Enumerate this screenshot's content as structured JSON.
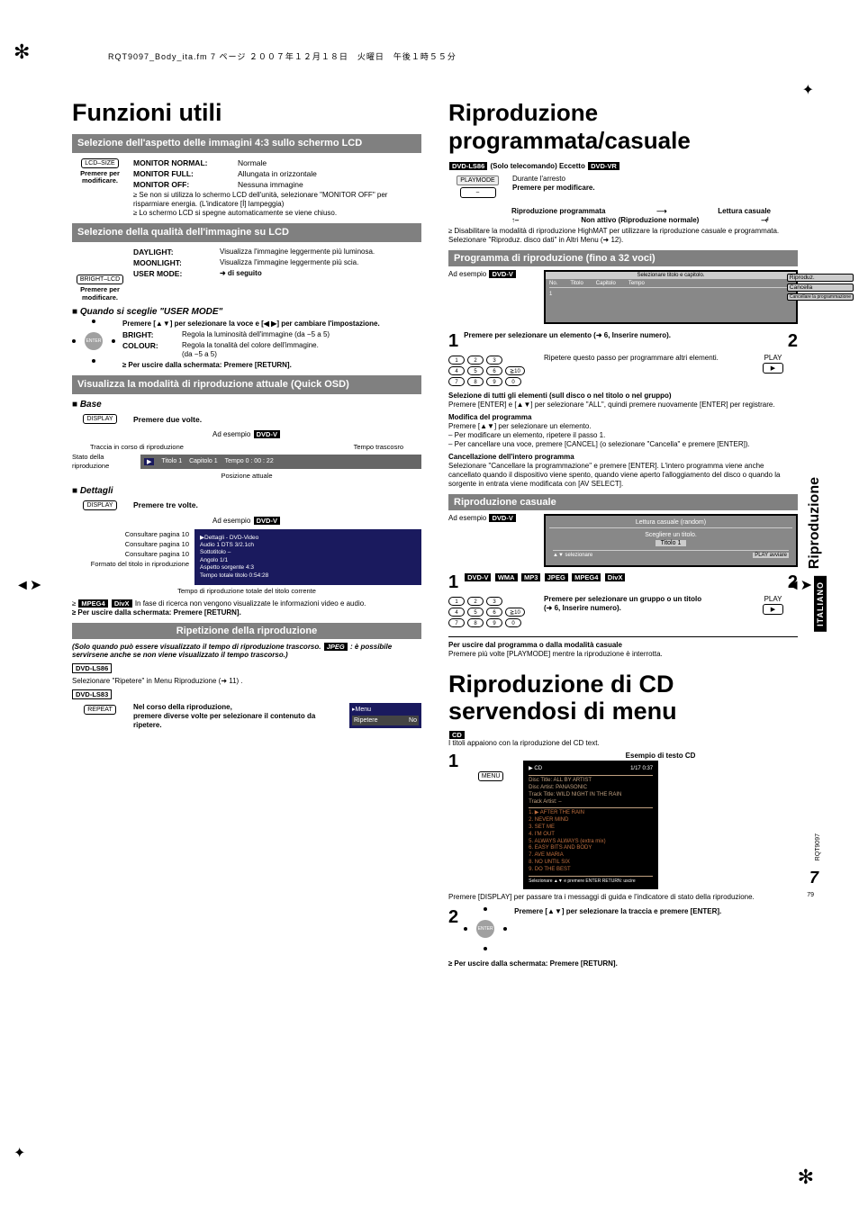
{
  "header_line": "RQT9097_Body_ita.fm  7 ページ  ２００７年１２月１８日　火曜日　午後１時５５分",
  "left": {
    "headline": "Funzioni utili",
    "bar1": "Selezione dell'aspetto delle immagini 4:3 sullo schermo LCD",
    "btn_lcdsize": "LCD–SIZE",
    "press_mod": "Premere per modificare.",
    "monitor_normal_l": "MONITOR NORMAL:",
    "monitor_normal_v": "Normale",
    "monitor_full_l": "MONITOR FULL:",
    "monitor_full_v": "Allungata in orizzontale",
    "monitor_off_l": "MONITOR OFF:",
    "monitor_off_v": "Nessuna immagine",
    "monitor_b1": "Se non si utilizza lo schermo LCD dell'unità, selezionare \"MONITOR OFF\" per risparmiare energia. (L'indicatore [Í] lampeggia)",
    "monitor_b2": "Lo schermo LCD si spegne automaticamente se viene chiuso.",
    "bar2": "Selezione della qualità dell'immagine su LCD",
    "btn_bright": "BRIGHT–LCD",
    "daylight_l": "DAYLIGHT:",
    "daylight_v": "Visualizza l'immagine leggermente più luminosa.",
    "moonlight_l": "MOONLIGHT:",
    "moonlight_v": "Visualizza l'immagine leggermente più scia.",
    "usermode_l": "USER MODE:",
    "usermode_v": "➜ di seguito",
    "user_title": "Quando si sceglie \"USER MODE\"",
    "user_instr": "Premere [▲▼] per selezionare la voce e [◀ ▶] per cambiare l'impostazione.",
    "bright_l": "BRIGHT:",
    "bright_v": "Regola la luminosità dell'immagine (da −5 a 5)",
    "colour_l": "COLOUR:",
    "colour_v": "Regola la tonalità del colore dell'immagine.\n(da −5 a 5)",
    "exit_return": "Per uscire dalla schermata: Premere [RETURN].",
    "bar3": "Visualizza la modalità di riproduzione attuale (Quick OSD)",
    "base_t": "Base",
    "btn_display": "DISPLAY",
    "press_twice": "Premere due volte.",
    "ex_label": "Ad esempio",
    "traccia": "Traccia in corso di riproduzione",
    "tempo_tras": "Tempo trascosro",
    "stato": "Stato della riproduzione",
    "osd_titolo": "Titolo 1",
    "osd_capitolo": "Capitolo 1",
    "osd_tempo": "Tempo 0 : 00 : 22",
    "pos_att": "Posizione attuale",
    "dettagli_t": "Dettagli",
    "press_three": "Premere tre volte.",
    "consult_10a": "Consultare pagina 10",
    "consult_10b": "Consultare pagina 10",
    "consult_10c": "Consultare pagina 10",
    "formato": "Formato del titolo in riproduzione",
    "tempo_tot": "Tempo di riproduzione totale del titolo corrente",
    "osd_detail_head": "▶Dettagli - DVD-Video",
    "osd_audio": "Audio            1         DTS 3/2.1ch",
    "osd_sub": "Sottotitolo     –",
    "osd_angolo": "Angolo           1/1",
    "osd_aspetto": "Aspetto sorgente  4:3",
    "osd_tempotot": "Tempo totale titolo  0:54:28",
    "mpeg4_note": "In fase di ricerca non vengono visualizzate le informazioni video e audio.",
    "bar4": "Ripetizione della riproduzione",
    "repeat_note": "(Solo quando può essere visualizzato il tempo di riproduzione trascorso. ",
    "repeat_note2": " : è possibile servirsene anche se non viene visualizzato il tempo trascorso.)",
    "tag_ls86": "DVD-LS86",
    "sel_ripetere": "Selezionare \"Ripetere\" in Menu Riproduzione (➜ 11) .",
    "tag_ls83": "DVD-LS83",
    "btn_repeat": "REPEAT",
    "repeat_instr": "Nel corso della riproduzione,\npremere diverse volte per selezionare il contenuto da ripetere.",
    "osd_menu": "Menu",
    "osd_rip": "Ripetere",
    "osd_no": "No"
  },
  "right": {
    "headline": "Riproduzione programmata/casuale",
    "tag_ls86": "DVD-LS86",
    "solo_tel": "(Solo telecomando) Eccetto",
    "tag_dvdvr": "DVD-VR",
    "btn_playmode": "PLAYMODE",
    "durante": "Durante l'arresto",
    "press_mod": "Premere per modificare.",
    "rip_prog": "Riproduzione programmata",
    "lettura_cas": "Lettura casuale",
    "non_attivo": "Non attivo (Riproduzione normale)",
    "disable_hm": "Disabilitare la modalità di riproduzione HighMAT per utilizzare la riproduzione casuale e programmata.\nSelezionare \"Riproduz. disco dati\" in Altri Menu (➜ 12).",
    "bar_prog": "Programma di riproduzione (fino a 32 voci)",
    "sel_titolo": "Selezionare titolo e capitolo.",
    "col_no": "No.",
    "col_titolo": "Titolo",
    "col_cap": "Capitolo",
    "col_tempo": "Tempo",
    "prog_btn_rip": "Riproduz.",
    "prog_btn_canc": "Cancella",
    "prog_btn_canc2": "Cancellare la programmazione",
    "num1": "1",
    "num2": "2",
    "step1": "Premere per selezionare un elemento (➜ 6, Inserire numero).",
    "step1_rep": "Ripetere questo passo per programmare altri elementi.",
    "play_label": "PLAY",
    "sel_all_h": "Selezione di tutti gli elementi (sull disco o nel titolo o nel gruppo)",
    "sel_all_t": "Premere [ENTER] e [▲▼] per selezionare \"ALL\", quindi premere nuovamente [ENTER] per registrare.",
    "mod_h": "Modifica del programma",
    "mod_1": "Premere [▲▼] per selezionare un elemento.",
    "mod_2": "– Per modificare un elemento, ripetere il passo 1.",
    "mod_3": "– Per cancellare una voce, premere [CANCEL] (o selezionare \"Cancella\" e premere [ENTER]).",
    "canc_h": "Cancellazione dell'intero programma",
    "canc_t": "Selezionare \"Cancellare la programmazione\" e premere [ENTER]. L'intero programma viene anche cancellato quando il dispositivo viene spento, quando viene aperto l'alloggiamento del disco o quando la sorgente in entrata viene modificata con [AV SELECT].",
    "bar_cas": "Riproduzione casuale",
    "cas_head": "Lettura casuale (random)",
    "cas_scegli": "Scegliere un titolo.",
    "cas_titolo": "Titolo 1",
    "cas_sel": "▲▼ selezionare",
    "cas_play": "PLAY avviare",
    "tags_row": [
      "DVD-V",
      "WMA",
      "MP3",
      "JPEG",
      "MPEG4",
      "DivX"
    ],
    "step1b": "Premere per selezionare un gruppo o un titolo\n(➜ 6, Inserire numero).",
    "exit_prog_h": "Per uscire dal programma o dalla modalità casuale",
    "exit_prog_t": "Premere più volte [PLAYMODE] mentre la riproduzione è interrotta.",
    "cd_headline": "Riproduzione di CD servendosi di menu",
    "cd_tag": "CD",
    "cd_sub": "I titoli appaiono con la riproduzione del CD text.",
    "cd_num1": "1",
    "cd_num2": "2",
    "btn_menu": "MENU",
    "esempio_cd": "Esempio di testo CD",
    "cd_hdr": "CD",
    "cd_count": "1/17    0:37",
    "cd_disc_title": "Disc Title:   ALL BY ARTIST",
    "cd_disc_artist": "Disc Artist:  PANASONIC",
    "cd_track_title": "Track Title:  WILD NIGHT IN THE RAIN",
    "cd_track_artist": "Track Artist: –",
    "cd_tracks": [
      "1. ▶ AFTER THE RAIN",
      "2.   NEVER MIND",
      "3.   SET ME",
      "4.   I'M OUT",
      "5.   ALWAYS ALWAYS (extra mix)",
      "6.   EASY BITS AND BODY",
      "7.   AVE MARIA",
      "8.   NO UNTIL SIX",
      "9.   DO THE BEST"
    ],
    "cd_footer": "Selezionare ▲▼ e premere ENTER       RETURN: uscire",
    "cd_display_note": "Premere [DISPLAY] per passare tra i messaggi di guida e l'indicatore di stato della riproduzione.",
    "cd_step2": "Premere [▲▼] per selezionare la traccia e premere [ENTER].",
    "exit_return": "Per uscire dalla schermata: Premere [RETURN]."
  },
  "side_tab": "Riproduzione",
  "side_tab_box": "ITALIANO",
  "page_num": "7",
  "page_num_sm": "79",
  "code": "RQT9097"
}
